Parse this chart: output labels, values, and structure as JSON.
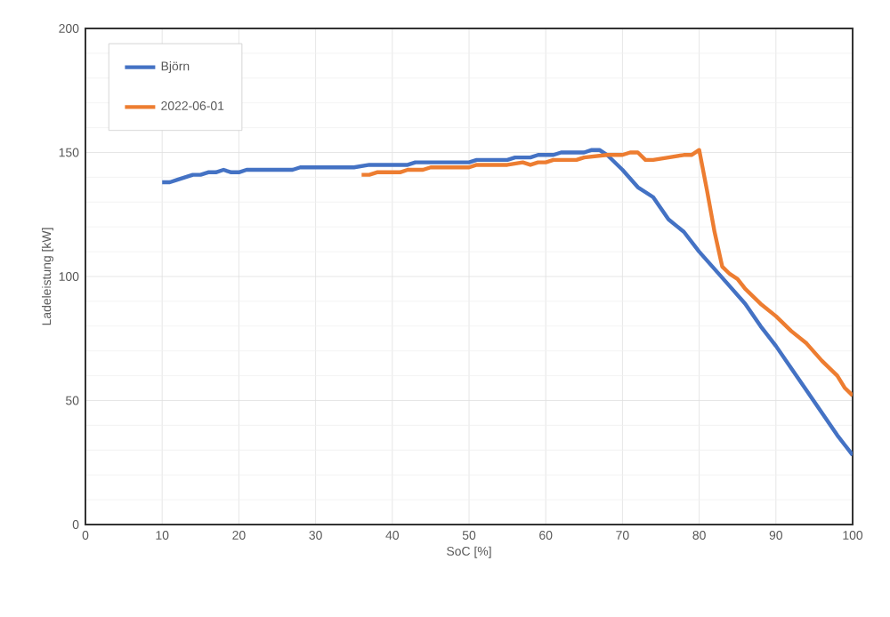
{
  "chart_data": {
    "type": "line",
    "xlabel": "SoC [%]",
    "ylabel": "Ladeleistung [kW]",
    "xlim": [
      0,
      100
    ],
    "ylim": [
      0,
      200
    ],
    "xticks": [
      0,
      10,
      20,
      30,
      40,
      50,
      60,
      70,
      80,
      90,
      100
    ],
    "yticks": [
      0,
      50,
      100,
      150,
      200
    ],
    "grid": true,
    "legend": "top left",
    "marker": "none",
    "line_style": "solid",
    "series": [
      {
        "name": "Björn",
        "color": "#4472c4",
        "x": [
          10,
          11,
          12,
          13,
          14,
          15,
          16,
          17,
          18,
          19,
          20,
          21,
          25,
          27,
          28,
          35,
          37,
          42,
          43,
          50,
          51,
          55,
          56,
          58,
          59,
          61,
          62,
          65,
          66,
          67,
          68,
          70,
          72,
          74,
          76,
          78,
          80,
          82,
          84,
          86,
          88,
          90,
          92,
          94,
          96,
          98,
          99,
          100
        ],
        "values": [
          138,
          138,
          139,
          140,
          141,
          141,
          142,
          142,
          143,
          142,
          142,
          143,
          143,
          143,
          144,
          144,
          145,
          145,
          146,
          146,
          147,
          147,
          148,
          148,
          149,
          149,
          150,
          150,
          151,
          151,
          149,
          143,
          136,
          132,
          123,
          118,
          110,
          103,
          96,
          89,
          80,
          72,
          63,
          54,
          45,
          36,
          32,
          28
        ]
      },
      {
        "name": "2022-06-01",
        "color": "#ed7d31",
        "x": [
          36,
          37,
          38,
          41,
          42,
          44,
          45,
          50,
          51,
          55,
          57,
          58,
          59,
          60,
          61,
          64,
          65,
          68,
          70,
          71,
          72,
          73,
          74,
          76,
          78,
          79,
          80,
          81,
          82,
          83,
          84,
          85,
          86,
          88,
          90,
          92,
          94,
          96,
          98,
          99,
          100
        ],
        "values": [
          141,
          141,
          142,
          142,
          143,
          143,
          144,
          144,
          145,
          145,
          146,
          145,
          146,
          146,
          147,
          147,
          148,
          149,
          149,
          150,
          150,
          147,
          147,
          148,
          149,
          149,
          151,
          135,
          118,
          104,
          101,
          99,
          95,
          89,
          84,
          78,
          73,
          66,
          60,
          55,
          52
        ]
      }
    ]
  }
}
